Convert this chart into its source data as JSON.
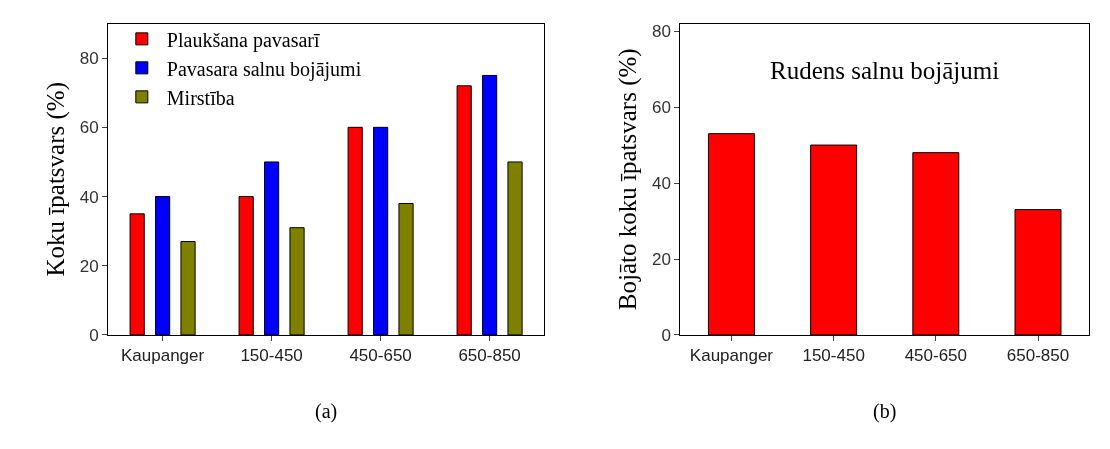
{
  "chart_data": [
    {
      "type": "bar",
      "categories": [
        "Kaupanger",
        "150-450",
        "450-650",
        "650-850"
      ],
      "ylabel": "Koku īpatsvars (%)",
      "ylim": [
        0,
        90
      ],
      "yticks": [
        0,
        20,
        40,
        60,
        80
      ],
      "legend": "top left",
      "annotations": [
        "(a)"
      ],
      "series": [
        {
          "name": "Plaukšana pavasarī",
          "color": "#ff0000",
          "values": [
            35,
            40,
            60,
            72
          ]
        },
        {
          "name": "Pavasara salnu bojājumi",
          "color": "#0000ff",
          "values": [
            40,
            50,
            60,
            75
          ]
        },
        {
          "name": "Mirstība",
          "color": "#808000",
          "values": [
            27,
            31,
            38,
            50
          ]
        }
      ]
    },
    {
      "type": "bar",
      "title": "Rudens salnu bojājumi",
      "categories": [
        "Kaupanger",
        "150-450",
        "450-650",
        "650-850"
      ],
      "ylabel": "Bojāto koku īpatsvars (%)",
      "ylim": [
        0,
        82
      ],
      "yticks": [
        0,
        20,
        40,
        60,
        80
      ],
      "annotations": [
        "(b)"
      ],
      "series": [
        {
          "color": "#ff0000",
          "values": [
            53,
            50,
            48,
            33
          ]
        }
      ]
    }
  ]
}
